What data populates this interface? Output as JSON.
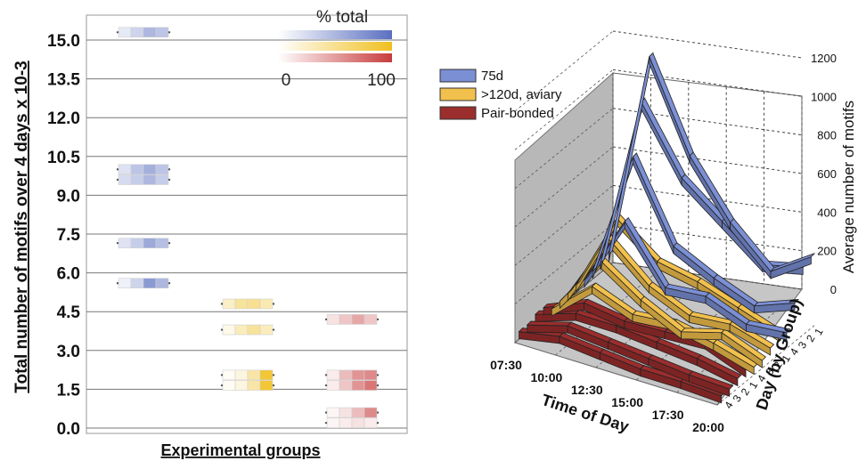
{
  "chart_data": [
    {
      "type": "heatmap",
      "ylabel": "Total number of motifs over 4 days x 10-3",
      "xlabel": "Experimental groups",
      "yticks": [
        "15.0",
        "13.5",
        "12.0",
        "10.5",
        "9.0",
        "7.5",
        "6.0",
        "4.5",
        "3.0",
        "1.5",
        "0.0"
      ],
      "ylim": [
        0,
        15.0
      ],
      "colorbar": {
        "title": "% total",
        "min_label": "0",
        "max_label": "100",
        "colors": [
          "#5a6fc0",
          "#f0c020",
          "#c83c3c"
        ]
      },
      "groups": [
        {
          "color": "#5a6fc0",
          "rows": [
            {
              "y": 15.3,
              "intensities": [
                0.15,
                0.3,
                0.5,
                0.4
              ]
            },
            {
              "y": 10.0,
              "intensities": [
                0.2,
                0.4,
                0.55,
                0.4
              ]
            },
            {
              "y": 9.6,
              "intensities": [
                0.25,
                0.35,
                0.5,
                0.35
              ]
            },
            {
              "y": 7.15,
              "intensities": [
                0.2,
                0.35,
                0.6,
                0.45
              ]
            },
            {
              "y": 5.6,
              "intensities": [
                0.1,
                0.3,
                0.7,
                0.5
              ]
            }
          ]
        },
        {
          "color": "#f0c020",
          "rows": [
            {
              "y": 4.8,
              "intensities": [
                0.25,
                0.45,
                0.5,
                0.35
              ]
            },
            {
              "y": 3.8,
              "intensities": [
                0.1,
                0.3,
                0.45,
                0.3
              ]
            },
            {
              "y": 2.05,
              "intensities": [
                0.05,
                0.15,
                0.4,
                0.9
              ]
            },
            {
              "y": 1.65,
              "intensities": [
                0.05,
                0.15,
                0.4,
                0.9
              ]
            }
          ]
        },
        {
          "color": "#c83c3c",
          "rows": [
            {
              "y": 4.2,
              "intensities": [
                0.15,
                0.3,
                0.45,
                0.3
              ]
            },
            {
              "y": 2.05,
              "intensities": [
                0.1,
                0.35,
                0.55,
                0.6
              ]
            },
            {
              "y": 1.65,
              "intensities": [
                0.1,
                0.3,
                0.55,
                0.7
              ]
            },
            {
              "y": 0.6,
              "intensities": [
                0.05,
                0.15,
                0.35,
                0.6
              ]
            },
            {
              "y": 0.2,
              "intensities": [
                0.05,
                0.1,
                0.15,
                0.1
              ]
            }
          ]
        }
      ]
    },
    {
      "type": "line",
      "projection": "3d",
      "xlabel": "Time of Day",
      "ylabel": "Day (by Group)",
      "zlabel": "Average number of motifs",
      "x_ticks": [
        "07:30",
        "10:00",
        "12:30",
        "15:00",
        "17:30",
        "20:00"
      ],
      "z_ticks": [
        "0",
        "200",
        "400",
        "600",
        "800",
        "1000",
        "1200"
      ],
      "zlim": [
        0,
        1200
      ],
      "day_ticks": [
        "1",
        "2",
        "3",
        "4",
        "1",
        "2",
        "3",
        "4",
        "1",
        "2",
        "3",
        "4"
      ],
      "legend": {
        "placement": "top-left",
        "entries": [
          "75d",
          ">120d, aviary",
          "Pair-bonded"
        ]
      },
      "series": [
        {
          "name": "75d",
          "color": "#7b8fd4",
          "lines": [
            {
              "day": 1,
              "values": [
                60,
                1150,
                700,
                420,
                230,
                370
              ]
            },
            {
              "day": 2,
              "values": [
                50,
                950,
                620,
                460,
                300,
                350
              ]
            },
            {
              "day": 3,
              "values": [
                40,
                700,
                300,
                200,
                120,
                200
              ]
            },
            {
              "day": 4,
              "values": [
                30,
                400,
                120,
                140,
                60,
                80
              ]
            }
          ]
        },
        {
          "name": ">120d, aviary",
          "color": "#f2c04c",
          "lines": [
            {
              "day": 1,
              "values": [
                40,
                450,
                290,
                250,
                180,
                110
              ]
            },
            {
              "day": 2,
              "values": [
                30,
                380,
                200,
                110,
                130,
                70
              ]
            },
            {
              "day": 3,
              "values": [
                25,
                300,
                160,
                60,
                120,
                40
              ]
            },
            {
              "day": 4,
              "values": [
                20,
                200,
                120,
                140,
                100,
                40
              ]
            }
          ]
        },
        {
          "name": "Pair-bonded",
          "color": "#9b2d2d",
          "lines": [
            {
              "day": 1,
              "values": [
                60,
                150,
                120,
                130,
                140,
                60
              ]
            },
            {
              "day": 2,
              "values": [
                60,
                130,
                130,
                110,
                90,
                50
              ]
            },
            {
              "day": 3,
              "values": [
                40,
                100,
                80,
                60,
                40,
                30
              ]
            },
            {
              "day": 4,
              "values": [
                40,
                80,
                60,
                40,
                40,
                30
              ]
            }
          ]
        }
      ]
    }
  ]
}
